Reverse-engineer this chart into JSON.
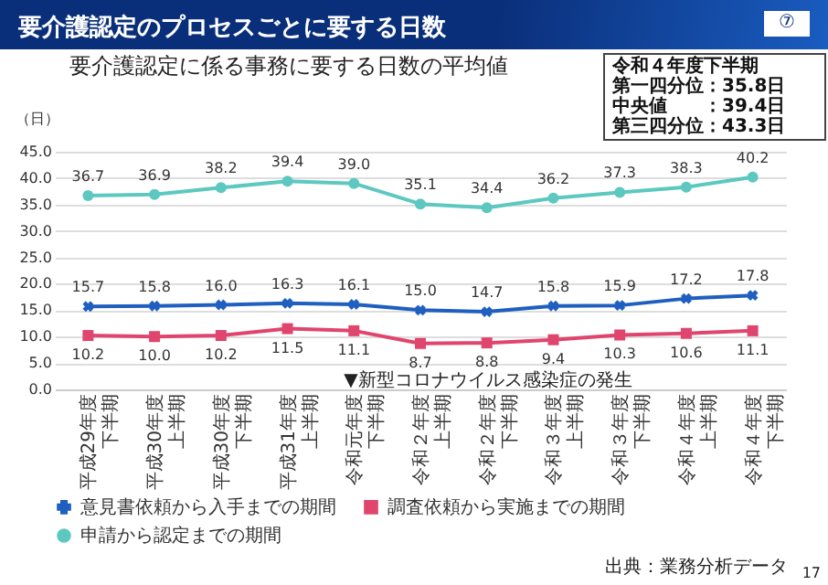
{
  "chart_data": {
    "type": "line",
    "title": "要介護認定のプロセスごとに要する日数",
    "subtitle": "要介護認定に係る事務に要する日数の平均値",
    "ylabel": "（日）",
    "categories": [
      "平成29年度下半期",
      "平成30年度上半期",
      "平成30年度下半期",
      "平成31年度上半期",
      "令和元年度下半期",
      "令和２年度上半期",
      "令和２年度下半期",
      "令和３年度上半期",
      "令和３年度下半期",
      "令和４年度上半期",
      "令和４年度下半期"
    ],
    "series": [
      {
        "name": "意見書依頼から入手までの期間",
        "color": "#1f5fbf",
        "marker": "cross",
        "values": [
          15.7,
          15.8,
          16.0,
          16.3,
          16.1,
          15.0,
          14.7,
          15.8,
          15.9,
          17.2,
          17.8
        ],
        "value_labels": [
          "15.7",
          "15.8",
          "16.0",
          "16.3",
          "16.1",
          "15.0",
          "14.7",
          "15.8",
          "15.9",
          "17.2",
          "17.8"
        ]
      },
      {
        "name": "調査依頼から実施までの期間",
        "color": "#e0456e",
        "marker": "square",
        "values": [
          10.2,
          10.0,
          10.2,
          11.5,
          11.1,
          8.7,
          8.8,
          9.4,
          10.3,
          10.6,
          11.1
        ],
        "value_labels": [
          "10.2",
          "10.0",
          "10.2",
          "11.5",
          "11.1",
          "8.7",
          "8.8",
          "9.4",
          "10.3",
          "10.6",
          "11.1"
        ]
      },
      {
        "name": "申請から認定までの期間",
        "color": "#5cc8c0",
        "marker": "circle",
        "values": [
          36.7,
          36.9,
          38.2,
          39.4,
          39.0,
          35.1,
          34.4,
          36.2,
          37.3,
          38.3,
          40.2
        ],
        "value_labels": [
          "36.7",
          "36.9",
          "38.2",
          "39.4",
          "39.0",
          "35.1",
          "34.4",
          "36.2",
          "37.3",
          "38.3",
          "40.2"
        ]
      }
    ],
    "ylim": [
      0,
      45
    ],
    "yticks": [
      {
        "value": 0,
        "label": "0.0"
      },
      {
        "value": 5,
        "label": "5.0"
      },
      {
        "value": 10,
        "label": "10.0"
      },
      {
        "value": 15,
        "label": "15.0"
      },
      {
        "value": 20,
        "label": "20.0"
      },
      {
        "value": 25,
        "label": "25.0"
      },
      {
        "value": 30,
        "label": "30.0"
      },
      {
        "value": 35,
        "label": "35.0"
      },
      {
        "value": 40,
        "label": "40.0"
      },
      {
        "value": 45,
        "label": "45.0"
      }
    ],
    "grid": "y",
    "legend": "bottom",
    "annotations": [
      "⑦",
      "令和４年度下半期",
      "第一四分位：35.8日",
      "中央値　　：39.4日",
      "第三四分位：43.3日",
      "▼新型コロナウイルス感染症の発生",
      "出典：業務分析データ",
      "17"
    ]
  }
}
